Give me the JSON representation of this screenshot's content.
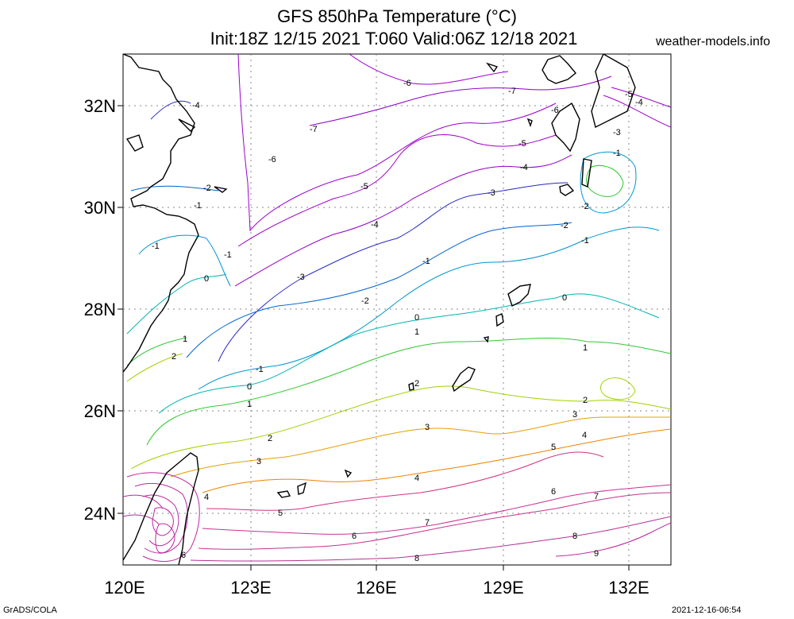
{
  "title_line1": "GFS 850hPa Temperature (°C)",
  "title_line2": "Init:18Z 12/15 2021 T:060 Valid:06Z 12/18 2021",
  "site": "weather-models.info",
  "footer_left": "GrADS/COLA",
  "footer_right": "2021-12-16-06:54",
  "map": {
    "lon_ticks": [
      "120E",
      "123E",
      "126E",
      "129E",
      "132E"
    ],
    "lat_ticks": [
      "32N",
      "30N",
      "28N",
      "26N",
      "24N"
    ]
  },
  "contour_colors": {
    "-7": "#8c00c8",
    "-6": "#9b00d2",
    "-5": "#a000c8",
    "-4": "#9600c8",
    "-3": "#2828c8",
    "-2": "#0064d2",
    "-1": "#0096d2",
    "0": "#00b4b4",
    "1": "#32c832",
    "2": "#a0d200",
    "3": "#e6a000",
    "4": "#f08200",
    "5": "#d23282",
    "6": "#c83296",
    "7": "#c8328c",
    "8": "#b43296",
    "9": "#be28a0"
  },
  "contour_labels": [
    "-7",
    "-6",
    "-5",
    "-4",
    "-3",
    "-2",
    "-1",
    "0",
    "1",
    "2",
    "3",
    "4",
    "5",
    "6",
    "7",
    "8",
    "9"
  ]
}
